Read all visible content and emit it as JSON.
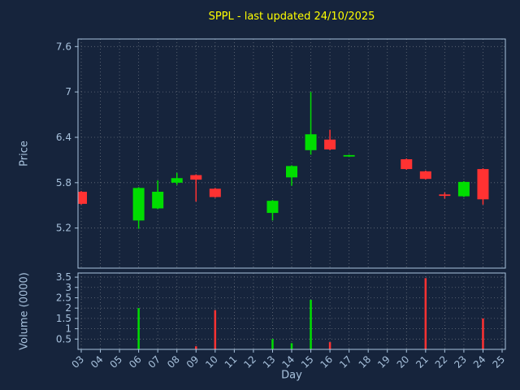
{
  "chart_data": {
    "type": "candlestick",
    "title": "SPPL - last updated 24/10/2025",
    "x_axis": {
      "label": "Day",
      "ticks": [
        {
          "v": 3,
          "label": "03"
        },
        {
          "v": 4,
          "label": "04"
        },
        {
          "v": 5,
          "label": "05"
        },
        {
          "v": 6,
          "label": "06"
        },
        {
          "v": 7,
          "label": "07"
        },
        {
          "v": 8,
          "label": "08"
        },
        {
          "v": 9,
          "label": "09"
        },
        {
          "v": 10,
          "label": "10"
        },
        {
          "v": 11,
          "label": "11"
        },
        {
          "v": 12,
          "label": "12"
        },
        {
          "v": 13,
          "label": "13"
        },
        {
          "v": 14,
          "label": "14"
        },
        {
          "v": 15,
          "label": "15"
        },
        {
          "v": 16,
          "label": "16"
        },
        {
          "v": 17,
          "label": "17"
        },
        {
          "v": 18,
          "label": "18"
        },
        {
          "v": 19,
          "label": "19"
        },
        {
          "v": 20,
          "label": "20"
        },
        {
          "v": 21,
          "label": "21"
        },
        {
          "v": 22,
          "label": "22"
        },
        {
          "v": 23,
          "label": "23"
        },
        {
          "v": 24,
          "label": "24"
        },
        {
          "v": 25,
          "label": "25"
        }
      ]
    },
    "price_axis": {
      "label": "Price",
      "ylim": [
        4.67,
        7.7
      ],
      "ticks": [
        {
          "v": 5.2,
          "label": "5.2"
        },
        {
          "v": 5.8,
          "label": "5.8"
        },
        {
          "v": 6.4,
          "label": "6.4"
        },
        {
          "v": 7.0,
          "label": "7"
        },
        {
          "v": 7.6,
          "label": "7.6"
        }
      ]
    },
    "volume_axis": {
      "label": "Volume (0000)",
      "ylim": [
        0,
        3.7
      ],
      "ticks": [
        {
          "v": 0.5,
          "label": "0.5"
        },
        {
          "v": 1.0,
          "label": "1"
        },
        {
          "v": 1.5,
          "label": "1.5"
        },
        {
          "v": 2.0,
          "label": "2"
        },
        {
          "v": 2.5,
          "label": "2.5"
        },
        {
          "v": 3.0,
          "label": "3"
        },
        {
          "v": 3.5,
          "label": "3.5"
        }
      ]
    },
    "grid": true,
    "legend": false,
    "colors": {
      "background": "#16243c",
      "up": "#00dd00",
      "down": "#ff3232",
      "grid": "#c8c8c8",
      "axis": "#a9c4de",
      "tick_text": "#a8c2dd",
      "title": "#ffff00"
    },
    "candles": [
      {
        "day": 3,
        "open": 5.68,
        "high": 5.69,
        "low": 5.51,
        "close": 5.52,
        "volume": 0
      },
      {
        "day": 6,
        "open": 5.3,
        "high": 5.74,
        "low": 5.19,
        "close": 5.73,
        "volume": 2.0
      },
      {
        "day": 7,
        "open": 5.46,
        "high": 5.83,
        "low": 5.45,
        "close": 5.68,
        "volume": 0
      },
      {
        "day": 8,
        "open": 5.8,
        "high": 5.93,
        "low": 5.77,
        "close": 5.86,
        "volume": 0
      },
      {
        "day": 9,
        "open": 5.9,
        "high": 5.91,
        "low": 5.55,
        "close": 5.84,
        "volume": 0.15
      },
      {
        "day": 10,
        "open": 5.72,
        "high": 5.73,
        "low": 5.6,
        "close": 5.61,
        "volume": 1.9
      },
      {
        "day": 13,
        "open": 5.4,
        "high": 5.57,
        "low": 5.3,
        "close": 5.56,
        "volume": 0.5
      },
      {
        "day": 14,
        "open": 5.87,
        "high": 6.03,
        "low": 5.76,
        "close": 6.02,
        "volume": 0.3
      },
      {
        "day": 15,
        "open": 6.23,
        "high": 7.0,
        "low": 6.17,
        "close": 6.44,
        "volume": 2.4
      },
      {
        "day": 16,
        "open": 6.37,
        "high": 6.5,
        "low": 6.23,
        "close": 6.24,
        "volume": 0.35
      },
      {
        "day": 17,
        "open": 6.15,
        "high": 6.17,
        "low": 6.14,
        "close": 6.16,
        "volume": 0
      },
      {
        "day": 20,
        "open": 6.11,
        "high": 6.12,
        "low": 5.97,
        "close": 5.98,
        "volume": 0
      },
      {
        "day": 21,
        "open": 5.95,
        "high": 5.96,
        "low": 5.84,
        "close": 5.85,
        "volume": 3.45
      },
      {
        "day": 22,
        "open": 5.64,
        "high": 5.67,
        "low": 5.59,
        "close": 5.63,
        "volume": 0
      },
      {
        "day": 23,
        "open": 5.62,
        "high": 5.82,
        "low": 5.61,
        "close": 5.81,
        "volume": 0
      },
      {
        "day": 24,
        "open": 5.98,
        "high": 5.99,
        "low": 5.51,
        "close": 5.58,
        "volume": 1.5
      }
    ]
  }
}
